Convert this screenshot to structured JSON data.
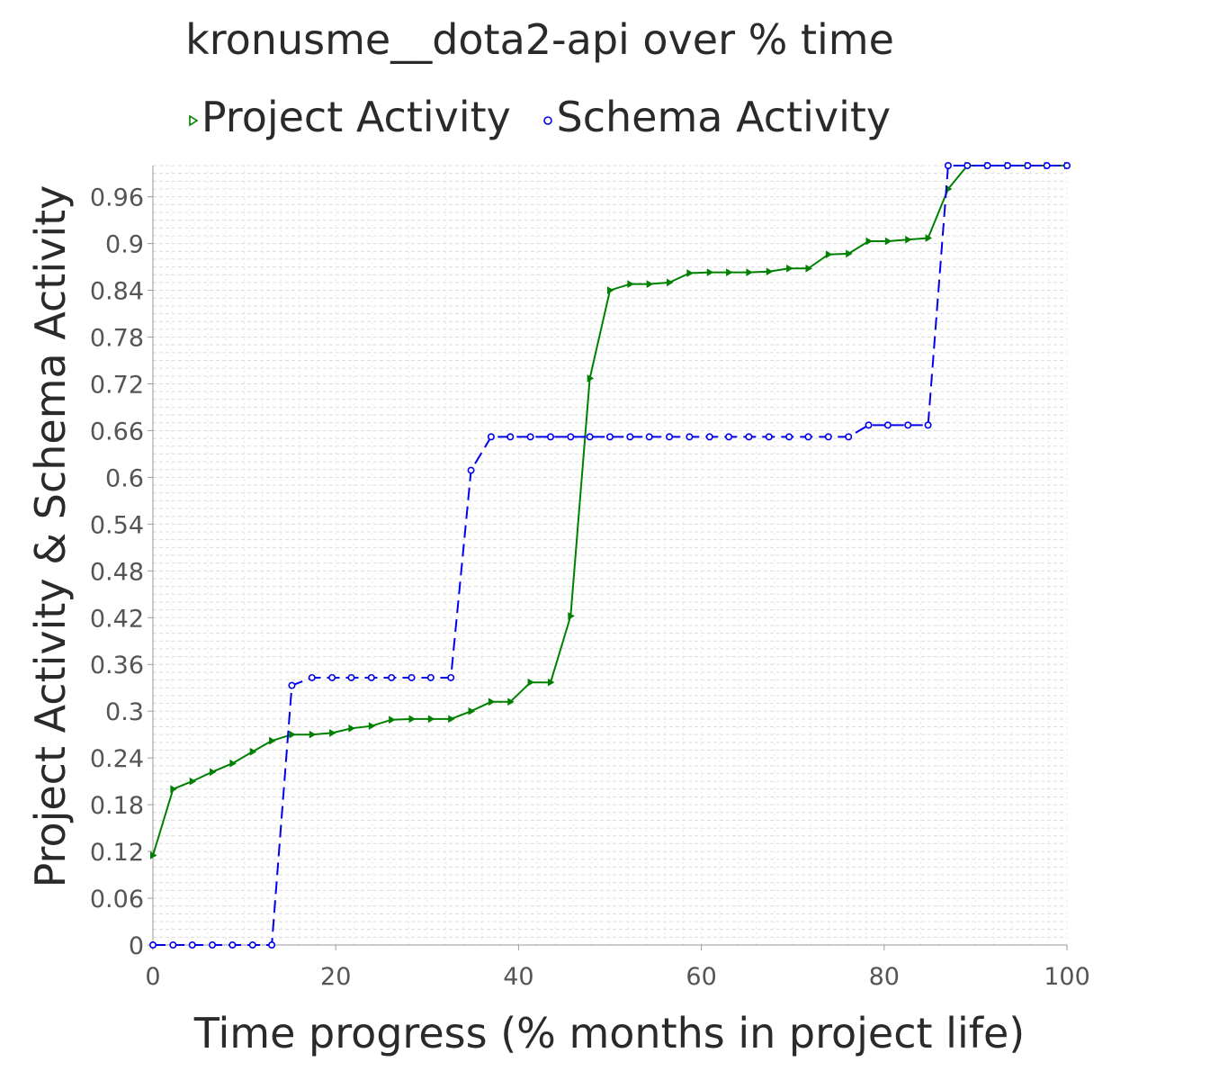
{
  "chart_data": {
    "type": "line",
    "title": "kronusme__dota2-api over % time",
    "xlabel": "Time progress (% months in project life)",
    "ylabel": "Project Activity & Schema Activity",
    "xlim": [
      0,
      100
    ],
    "ylim": [
      0,
      1.0
    ],
    "x_ticks": [
      "0",
      "20",
      "40",
      "60",
      "80",
      "100"
    ],
    "y_ticks": [
      "0",
      "0.06",
      "0.12",
      "0.18",
      "0.24",
      "0.3",
      "0.36",
      "0.42",
      "0.48",
      "0.54",
      "0.6",
      "0.66",
      "0.72",
      "0.78",
      "0.84",
      "0.9",
      "0.96"
    ],
    "grid": true,
    "legend_position": "top",
    "series": [
      {
        "name": "Project Activity",
        "color": "#008000",
        "line_style": "solid",
        "marker": "triangle",
        "x": [
          0,
          2.2,
          4.3,
          6.5,
          8.7,
          10.9,
          13.0,
          15.2,
          17.4,
          19.6,
          21.7,
          23.9,
          26.1,
          28.3,
          30.4,
          32.6,
          34.8,
          37.0,
          39.1,
          41.3,
          43.5,
          45.7,
          47.8,
          50.0,
          52.2,
          54.3,
          56.5,
          58.7,
          60.9,
          63.0,
          65.2,
          67.4,
          69.6,
          71.7,
          73.9,
          76.1,
          78.3,
          80.4,
          82.6,
          84.8,
          87.0,
          89.1,
          91.3,
          93.5,
          95.7,
          97.8,
          100
        ],
        "y": [
          0.115,
          0.2,
          0.21,
          0.222,
          0.233,
          0.248,
          0.262,
          0.27,
          0.27,
          0.272,
          0.278,
          0.281,
          0.289,
          0.29,
          0.29,
          0.29,
          0.3,
          0.312,
          0.312,
          0.337,
          0.337,
          0.422,
          0.727,
          0.84,
          0.848,
          0.848,
          0.85,
          0.862,
          0.863,
          0.863,
          0.863,
          0.864,
          0.868,
          0.868,
          0.886,
          0.887,
          0.903,
          0.903,
          0.905,
          0.907,
          0.97,
          1.0,
          1.0,
          1.0,
          1.0,
          1.0,
          1.0
        ]
      },
      {
        "name": "Schema Activity",
        "color": "#0000ee",
        "line_style": "dashed",
        "marker": "circle",
        "x": [
          0,
          2.2,
          4.3,
          6.5,
          8.7,
          10.9,
          13.0,
          15.2,
          17.4,
          19.6,
          21.7,
          23.9,
          26.1,
          28.3,
          30.4,
          32.6,
          34.8,
          37.0,
          39.1,
          41.3,
          43.5,
          45.7,
          47.8,
          50.0,
          52.2,
          54.3,
          56.5,
          58.7,
          60.9,
          63.0,
          65.2,
          67.4,
          69.6,
          71.7,
          73.9,
          76.1,
          78.3,
          80.4,
          82.6,
          84.8,
          87.0,
          89.1,
          91.3,
          93.5,
          95.7,
          97.8,
          100
        ],
        "y": [
          0,
          0,
          0,
          0,
          0,
          0,
          0,
          0.333,
          0.343,
          0.343,
          0.343,
          0.343,
          0.343,
          0.343,
          0.343,
          0.343,
          0.609,
          0.652,
          0.652,
          0.652,
          0.652,
          0.652,
          0.652,
          0.652,
          0.652,
          0.652,
          0.652,
          0.652,
          0.652,
          0.652,
          0.652,
          0.652,
          0.652,
          0.652,
          0.652,
          0.652,
          0.667,
          0.667,
          0.667,
          0.667,
          1.0,
          1.0,
          1.0,
          1.0,
          1.0,
          1.0,
          1.0
        ]
      }
    ]
  }
}
